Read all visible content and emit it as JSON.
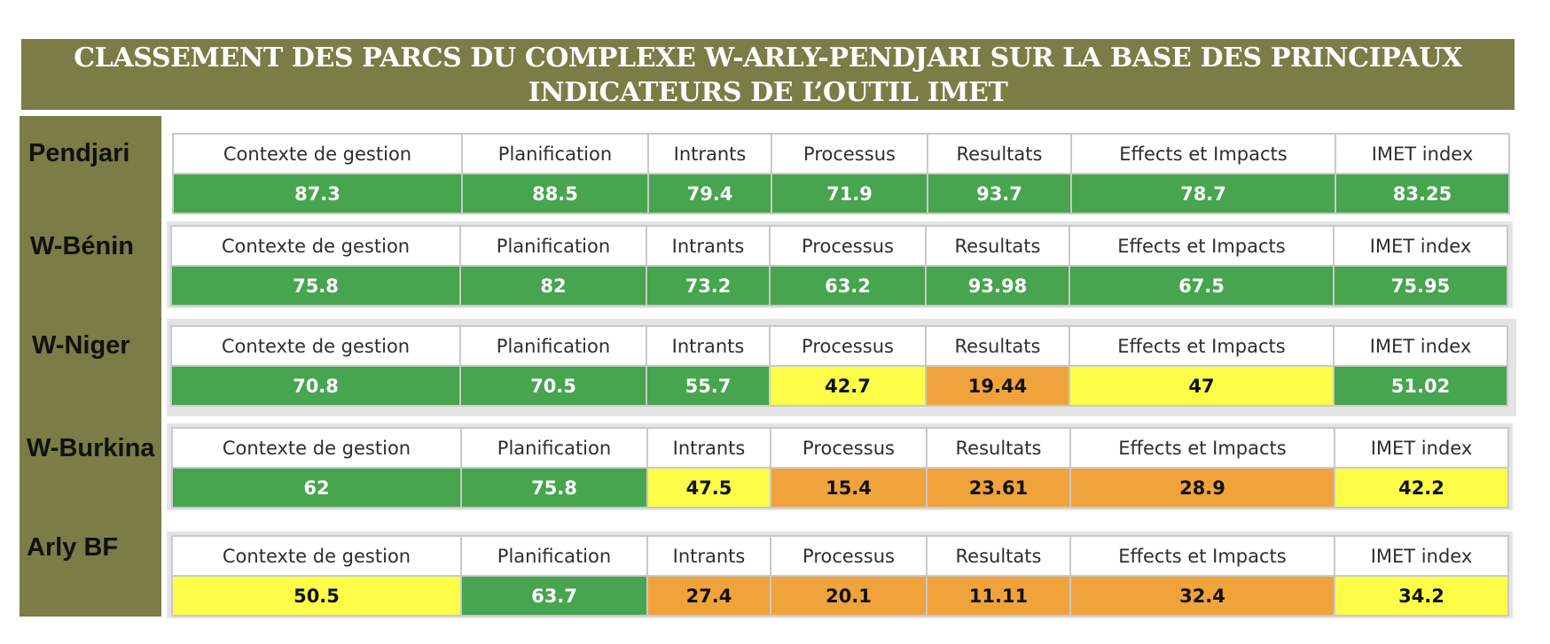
{
  "colors": {
    "banner": "#7b7c46",
    "green": "#47a44f",
    "yellow": "#fdfd47",
    "orange": "#f0a33b"
  },
  "chart_data": {
    "type": "table",
    "title_line1": "CLASSEMENT DES PARCS DU COMPLEXE W-ARLY-PENDJARI SUR LA BASE DES PRINCIPAUX",
    "title_line2": "INDICATEURS DE L’OUTIL IMET",
    "columns": [
      "Contexte de gestion",
      "Planification",
      "Intrants",
      "Processus",
      "Resultats",
      "Effects et Impacts",
      "IMET index"
    ],
    "rows": [
      {
        "park": "Pendjari",
        "values": [
          "87.3",
          "88.5",
          "79.4",
          "71.9",
          "93.7",
          "78.7",
          "83.25"
        ],
        "levels": [
          "green",
          "green",
          "green",
          "green",
          "green",
          "green",
          "green"
        ]
      },
      {
        "park": "W-Bénin",
        "values": [
          "75.8",
          "82",
          "73.2",
          "63.2",
          "93.98",
          "67.5",
          "75.95"
        ],
        "levels": [
          "green",
          "green",
          "green",
          "green",
          "green",
          "green",
          "green"
        ]
      },
      {
        "park": "W-Niger",
        "values": [
          "70.8",
          "70.5",
          "55.7",
          "42.7",
          "19.44",
          "47",
          "51.02"
        ],
        "levels": [
          "green",
          "green",
          "green",
          "yellow",
          "orange",
          "yellow",
          "green"
        ]
      },
      {
        "park": "W-Burkina",
        "values": [
          "62",
          "75.8",
          "47.5",
          "15.4",
          "23.61",
          "28.9",
          "42.2"
        ],
        "levels": [
          "green",
          "green",
          "yellow",
          "orange",
          "orange",
          "orange",
          "yellow"
        ]
      },
      {
        "park": "Arly BF",
        "values": [
          "50.5",
          "63.7",
          "27.4",
          "20.1",
          "11.11",
          "32.4",
          "34.2"
        ],
        "levels": [
          "yellow",
          "green",
          "orange",
          "orange",
          "orange",
          "orange",
          "yellow"
        ]
      }
    ]
  }
}
